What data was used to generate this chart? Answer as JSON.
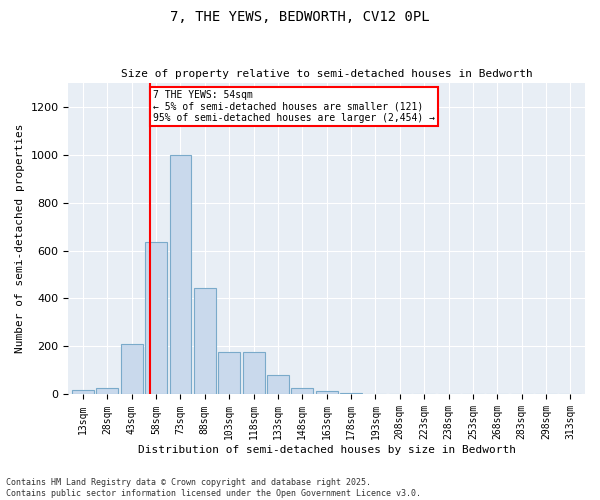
{
  "title": "7, THE YEWS, BEDWORTH, CV12 0PL",
  "subtitle": "Size of property relative to semi-detached houses in Bedworth",
  "xlabel": "Distribution of semi-detached houses by size in Bedworth",
  "ylabel": "Number of semi-detached properties",
  "categories": [
    "13sqm",
    "28sqm",
    "43sqm",
    "58sqm",
    "73sqm",
    "88sqm",
    "103sqm",
    "118sqm",
    "133sqm",
    "148sqm",
    "163sqm",
    "178sqm",
    "193sqm",
    "208sqm",
    "223sqm",
    "238sqm",
    "253sqm",
    "268sqm",
    "283sqm",
    "298sqm",
    "313sqm"
  ],
  "bar_values": [
    20,
    25,
    210,
    635,
    1000,
    445,
    175,
    175,
    80,
    25,
    15,
    5,
    2,
    1,
    0,
    0,
    0,
    0,
    0,
    0,
    0
  ],
  "bar_color": "#c9d9ec",
  "bar_edge_color": "#7aaaca",
  "vline_color": "red",
  "annotation_title": "7 THE YEWS: 54sqm",
  "annotation_line1": "← 5% of semi-detached houses are smaller (121)",
  "annotation_line2": "95% of semi-detached houses are larger (2,454) →",
  "annotation_box_color": "white",
  "annotation_box_edge": "red",
  "ylim": [
    0,
    1300
  ],
  "yticks": [
    0,
    200,
    400,
    600,
    800,
    1000,
    1200
  ],
  "background_color": "#e8eef5",
  "footer_line1": "Contains HM Land Registry data © Crown copyright and database right 2025.",
  "footer_line2": "Contains public sector information licensed under the Open Government Licence v3.0."
}
